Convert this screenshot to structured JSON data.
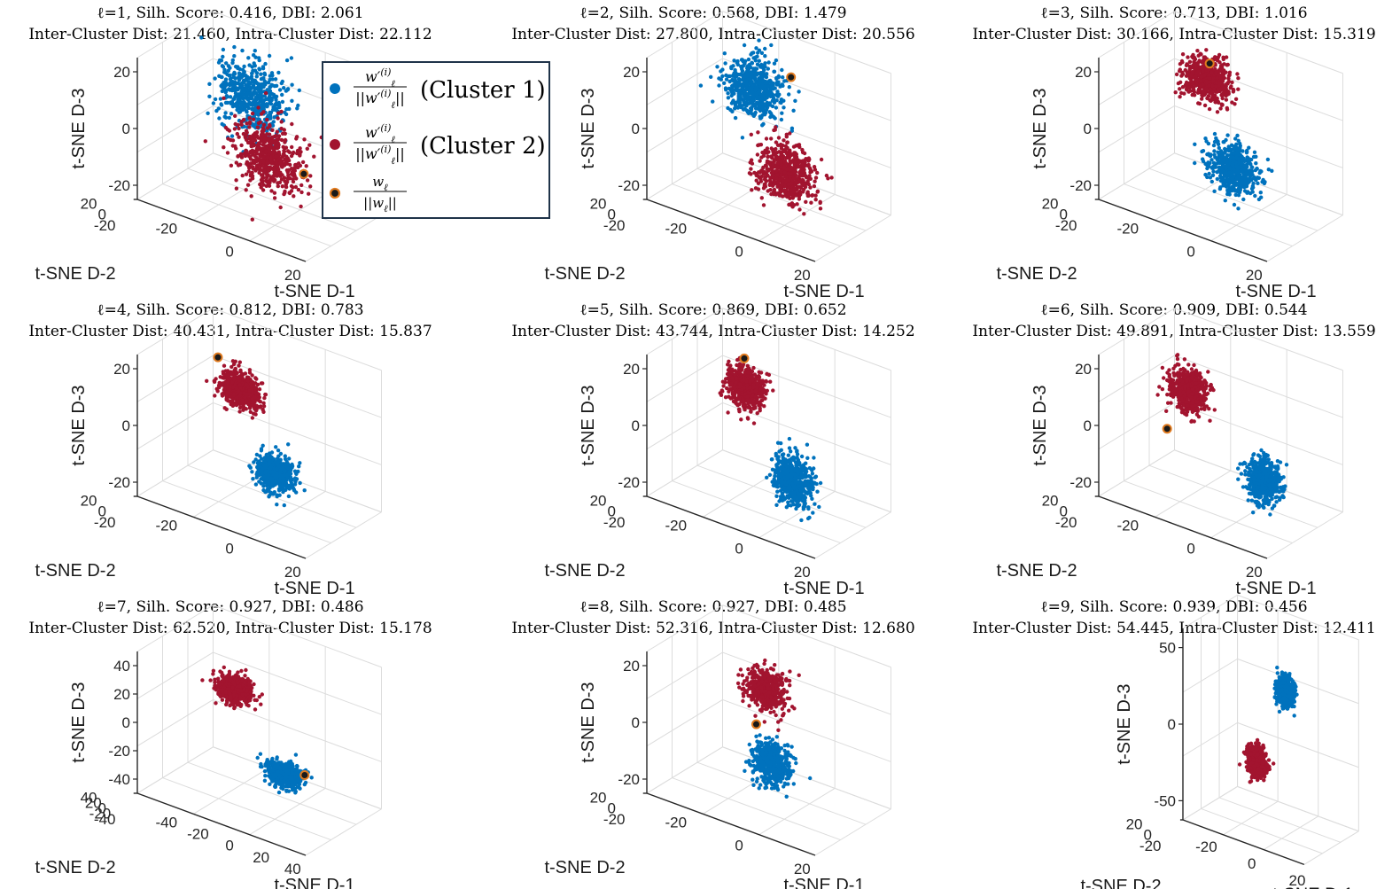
{
  "colors": {
    "cluster_1": "#0072BD",
    "cluster_2": "#A2142F",
    "centroid_fill": "#1a1a1a",
    "centroid_edge": "#E07A1F",
    "axes": "#262626",
    "grid": "#dcdcdc",
    "legend_border": "#1F3349"
  },
  "legend": {
    "entries": [
      {
        "numerator": "w′",
        "sub": "ℓ",
        "sup": "(i)",
        "denominator": "||w′",
        "den_sub": "ℓ",
        "den_sup": "(i)",
        "den_close": "||",
        "label": "(Cluster 1)",
        "color_key": "cluster_1",
        "marker": "dot"
      },
      {
        "numerator": "w′",
        "sub": "ℓ",
        "sup": "(i)",
        "denominator": "||w′",
        "den_sub": "ℓ",
        "den_sup": "(i)",
        "den_close": "||",
        "label": "(Cluster 2)",
        "color_key": "cluster_2",
        "marker": "dot"
      },
      {
        "numerator": "w",
        "sub": "ℓ",
        "sup": "",
        "denominator": "||w",
        "den_sub": "ℓ",
        "den_sup": "",
        "den_close": "||",
        "label": "",
        "color_key": "centroid",
        "marker": "centroid"
      }
    ]
  },
  "chart_data": [
    {
      "type": "scatter",
      "title": "ℓ=1, Silh. Score: 0.416, DBI: 2.061",
      "subtitle": "Inter-Cluster Dist: 21.460, Intra-Cluster Dist: 22.112",
      "xlabel": "t-SNE D-1",
      "ylabel": "t-SNE D-2",
      "zlabel": "t-SNE D-3",
      "x_ticks": [
        "-20",
        "0",
        "20"
      ],
      "y_ticks": [
        "-20",
        "0",
        "20"
      ],
      "z_ticks": [
        "-20",
        "0",
        "20"
      ],
      "zlim": [
        -30,
        25
      ],
      "grid": true,
      "series": [
        {
          "name": "Cluster 1",
          "color_key": "cluster_1",
          "n_points": 550,
          "center": [
            -6,
            4,
            10
          ],
          "spread": [
            14,
            10,
            12
          ]
        },
        {
          "name": "Cluster 2",
          "color_key": "cluster_2",
          "n_points": 550,
          "center": [
            6,
            -4,
            -8
          ],
          "spread": [
            14,
            10,
            12
          ]
        }
      ],
      "centroid": [
        22,
        -2,
        -10
      ]
    },
    {
      "type": "scatter",
      "title": "ℓ=2, Silh. Score: 0.568, DBI: 1.479",
      "subtitle": "Inter-Cluster Dist: 27.800, Intra-Cluster Dist: 20.556",
      "xlabel": "t-SNE D-1",
      "ylabel": "t-SNE D-2",
      "zlabel": "t-SNE D-3",
      "x_ticks": [
        "-20",
        "0",
        "20"
      ],
      "y_ticks": [
        "-20",
        "0",
        "20"
      ],
      "z_ticks": [
        "-20",
        "0",
        "20"
      ],
      "zlim": [
        -30,
        25
      ],
      "grid": true,
      "series": [
        {
          "name": "Cluster 1",
          "color_key": "cluster_1",
          "n_points": 550,
          "center": [
            -10,
            5,
            12
          ],
          "spread": [
            12,
            9,
            10
          ]
        },
        {
          "name": "Cluster 2",
          "color_key": "cluster_2",
          "n_points": 550,
          "center": [
            10,
            -5,
            -12
          ],
          "spread": [
            12,
            9,
            10
          ]
        }
      ],
      "centroid": [
        6,
        10,
        20
      ]
    },
    {
      "type": "scatter",
      "title": "ℓ=3, Silh. Score: 0.713, DBI: 1.016",
      "subtitle": "Inter-Cluster Dist: 30.166, Intra-Cluster Dist: 15.319",
      "xlabel": "t-SNE D-1",
      "ylabel": "t-SNE D-2",
      "zlabel": "t-SNE D-3",
      "x_ticks": [
        "-20",
        "0",
        "20"
      ],
      "y_ticks": [
        "-20",
        "0",
        "20"
      ],
      "z_ticks": [
        "-20",
        "0",
        "20"
      ],
      "zlim": [
        -30,
        25
      ],
      "grid": true,
      "series": [
        {
          "name": "Cluster 1",
          "color_key": "cluster_1",
          "n_points": 550,
          "center": [
            10,
            -8,
            -10
          ],
          "spread": [
            10,
            7,
            8
          ]
        },
        {
          "name": "Cluster 2",
          "color_key": "cluster_2",
          "n_points": 550,
          "center": [
            -10,
            8,
            15
          ],
          "spread": [
            10,
            7,
            7
          ]
        }
      ],
      "centroid": [
        -8,
        6,
        22
      ]
    },
    {
      "type": "scatter",
      "title": "ℓ=4, Silh. Score: 0.812, DBI: 0.783",
      "subtitle": "Inter-Cluster Dist: 40.431, Intra-Cluster Dist: 15.837",
      "xlabel": "t-SNE D-1",
      "ylabel": "t-SNE D-2",
      "zlabel": "t-SNE D-3",
      "x_ticks": [
        "-20",
        "0",
        "20"
      ],
      "y_ticks": [
        "-20",
        "0",
        "20"
      ],
      "z_ticks": [
        "-20",
        "0",
        "20"
      ],
      "zlim": [
        -30,
        25
      ],
      "grid": true,
      "series": [
        {
          "name": "Cluster 1",
          "color_key": "cluster_1",
          "n_points": 550,
          "center": [
            12,
            -10,
            -12
          ],
          "spread": [
            8,
            6,
            6
          ]
        },
        {
          "name": "Cluster 2",
          "color_key": "cluster_2",
          "n_points": 550,
          "center": [
            -14,
            10,
            8
          ],
          "spread": [
            8,
            6,
            6
          ]
        }
      ],
      "centroid": [
        -26,
        14,
        16
      ]
    },
    {
      "type": "scatter",
      "title": "ℓ=5, Silh. Score: 0.869, DBI: 0.652",
      "subtitle": "Inter-Cluster Dist: 43.744, Intra-Cluster Dist: 14.252",
      "xlabel": "t-SNE D-1",
      "ylabel": "t-SNE D-2",
      "zlabel": "t-SNE D-3",
      "x_ticks": [
        "-20",
        "0",
        "20"
      ],
      "y_ticks": [
        "-20",
        "0",
        "20"
      ],
      "z_ticks": [
        "-20",
        "0",
        "20"
      ],
      "zlim": [
        -30,
        25
      ],
      "grid": true,
      "series": [
        {
          "name": "Cluster 1",
          "color_key": "cluster_1",
          "n_points": 550,
          "center": [
            16,
            -10,
            -14
          ],
          "spread": [
            8,
            6,
            8
          ]
        },
        {
          "name": "Cluster 2",
          "color_key": "cluster_2",
          "n_points": 550,
          "center": [
            -16,
            10,
            8
          ],
          "spread": [
            8,
            6,
            7
          ]
        }
      ],
      "centroid": [
        -18,
        14,
        18
      ]
    },
    {
      "type": "scatter",
      "title": "ℓ=6, Silh. Score: 0.909, DBI: 0.544",
      "subtitle": "Inter-Cluster Dist: 49.891, Intra-Cluster Dist: 13.559",
      "xlabel": "t-SNE D-1",
      "ylabel": "t-SNE D-2",
      "zlabel": "t-SNE D-3",
      "x_ticks": [
        "-20",
        "0",
        "20"
      ],
      "y_ticks": [
        "-20",
        "0",
        "20"
      ],
      "z_ticks": [
        "-20",
        "0",
        "20"
      ],
      "zlim": [
        -30,
        25
      ],
      "grid": true,
      "series": [
        {
          "name": "Cluster 1",
          "color_key": "cluster_1",
          "n_points": 550,
          "center": [
            24,
            -8,
            -12
          ],
          "spread": [
            7,
            6,
            7
          ]
        },
        {
          "name": "Cluster 2",
          "color_key": "cluster_2",
          "n_points": 550,
          "center": [
            -20,
            10,
            6
          ],
          "spread": [
            8,
            6,
            7
          ]
        }
      ],
      "centroid": [
        -30,
        10,
        -12
      ]
    },
    {
      "type": "scatter",
      "title": "ℓ=7, Silh. Score: 0.927, DBI: 0.486",
      "subtitle": "Inter-Cluster Dist: 62.520, Intra-Cluster Dist: 15.178",
      "xlabel": "t-SNE D-1",
      "ylabel": "t-SNE D-2",
      "zlabel": "t-SNE D-3",
      "x_ticks": [
        "-40",
        "-20",
        "0",
        "20",
        "40"
      ],
      "y_ticks": [
        "-40",
        "-20",
        "0",
        "20",
        "40"
      ],
      "z_ticks": [
        "-40",
        "-20",
        "0",
        "20",
        "40"
      ],
      "zlim": [
        -45,
        45
      ],
      "grid": true,
      "series": [
        {
          "name": "Cluster 1",
          "color_key": "cluster_1",
          "n_points": 550,
          "center": [
            18,
            -14,
            -14
          ],
          "spread": [
            7,
            6,
            6
          ]
        },
        {
          "name": "Cluster 2",
          "color_key": "cluster_2",
          "n_points": 550,
          "center": [
            -18,
            14,
            12
          ],
          "spread": [
            7,
            6,
            7
          ]
        }
      ],
      "centroid": [
        26,
        -10,
        -12
      ]
    },
    {
      "type": "scatter",
      "title": "ℓ=8, Silh. Score: 0.927, DBI: 0.485",
      "subtitle": "Inter-Cluster Dist: 52.316, Intra-Cluster Dist: 12.680",
      "xlabel": "t-SNE D-1",
      "ylabel": "t-SNE D-2",
      "zlabel": "t-SNE D-3",
      "x_ticks": [
        "-20",
        "0",
        "20"
      ],
      "y_ticks": [
        "-20",
        "0",
        "20"
      ],
      "z_ticks": [
        "-20",
        "0",
        "20"
      ],
      "zlim": [
        -30,
        25
      ],
      "grid": true,
      "series": [
        {
          "name": "Cluster 1",
          "color_key": "cluster_1",
          "n_points": 550,
          "center": [
            2,
            -2,
            -14
          ],
          "spread": [
            8,
            6,
            7
          ]
        },
        {
          "name": "Cluster 2",
          "color_key": "cluster_2",
          "n_points": 550,
          "center": [
            -2,
            2,
            12
          ],
          "spread": [
            8,
            6,
            7
          ]
        }
      ],
      "centroid": [
        -6,
        0,
        -2
      ]
    },
    {
      "type": "scatter",
      "title": "ℓ=9, Silh. Score: 0.939, DBI: 0.456",
      "subtitle": "Inter-Cluster Dist: 54.445, Intra-Cluster Dist: 12.411",
      "xlabel": "t-SNE D-1",
      "ylabel": "t-SNE D-2",
      "zlabel": "t-SNE D-3",
      "x_ticks": [
        "-20",
        "0",
        "20"
      ],
      "y_ticks": [
        "-20",
        "0",
        "20"
      ],
      "z_ticks": [
        "-50",
        "0",
        "50"
      ],
      "zlim": [
        -55,
        55
      ],
      "grid": true,
      "series": [
        {
          "name": "Cluster 1",
          "color_key": "cluster_1",
          "n_points": 550,
          "center": [
            6,
            8,
            22
          ],
          "spread": [
            5,
            4,
            7
          ]
        },
        {
          "name": "Cluster 2",
          "color_key": "cluster_2",
          "n_points": 550,
          "center": [
            -6,
            -8,
            -18
          ],
          "spread": [
            5,
            4,
            8
          ]
        }
      ],
      "centroid": null
    }
  ]
}
